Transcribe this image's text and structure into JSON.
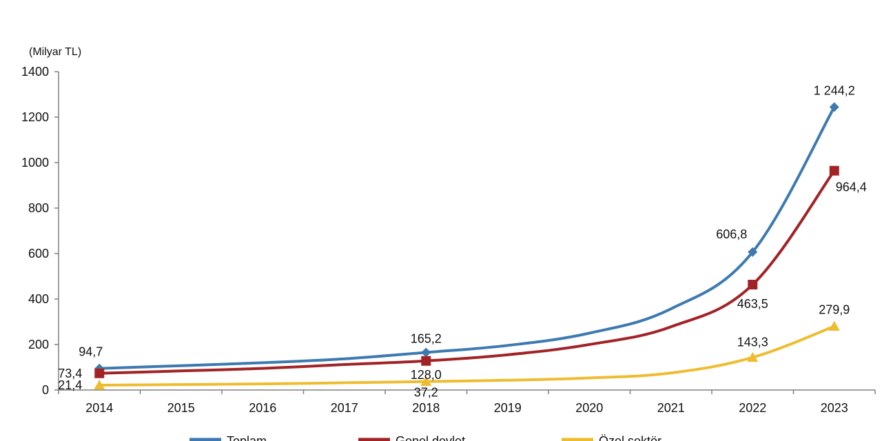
{
  "chart_data": {
    "type": "line",
    "unit_label": "(Milyar TL)",
    "x": [
      "2014",
      "2015",
      "2016",
      "2017",
      "2018",
      "2019",
      "2020",
      "2021",
      "2022",
      "2023"
    ],
    "ylim": [
      0,
      1400
    ],
    "yticks": [
      0,
      200,
      400,
      600,
      800,
      1000,
      1200,
      1400
    ],
    "grid": false,
    "legend_position": "bottom",
    "series": [
      {
        "name": "Toplam",
        "color": "#3d7ab1",
        "marker": "diamond",
        "values": [
          94.7,
          107,
          120,
          137,
          165.2,
          196,
          250,
          357,
          606.8,
          1244.2
        ],
        "labels": [
          {
            "index": 0,
            "text": "94,7"
          },
          {
            "index": 4,
            "text": "165,2"
          },
          {
            "index": 8,
            "text": "606,8"
          },
          {
            "index": 9,
            "text": "1 244,2"
          }
        ]
      },
      {
        "name": "Genel devlet",
        "color": "#a12326",
        "marker": "square",
        "values": [
          73.4,
          84,
          95,
          112,
          128.0,
          155,
          200,
          278,
          463.5,
          964.4
        ],
        "labels": [
          {
            "index": 0,
            "text": "73,4"
          },
          {
            "index": 4,
            "text": "128,0"
          },
          {
            "index": 8,
            "text": "463,5"
          },
          {
            "index": 9,
            "text": "964,4"
          }
        ]
      },
      {
        "name": "Özel sektör",
        "color": "#eebd2f",
        "marker": "triangle",
        "values": [
          21.4,
          24,
          27,
          32,
          37.2,
          43,
          53,
          75,
          143.3,
          279.9
        ],
        "labels": [
          {
            "index": 0,
            "text": "21,4"
          },
          {
            "index": 4,
            "text": "37,2"
          },
          {
            "index": 8,
            "text": "143,3"
          },
          {
            "index": 9,
            "text": "279,9"
          }
        ]
      }
    ]
  }
}
